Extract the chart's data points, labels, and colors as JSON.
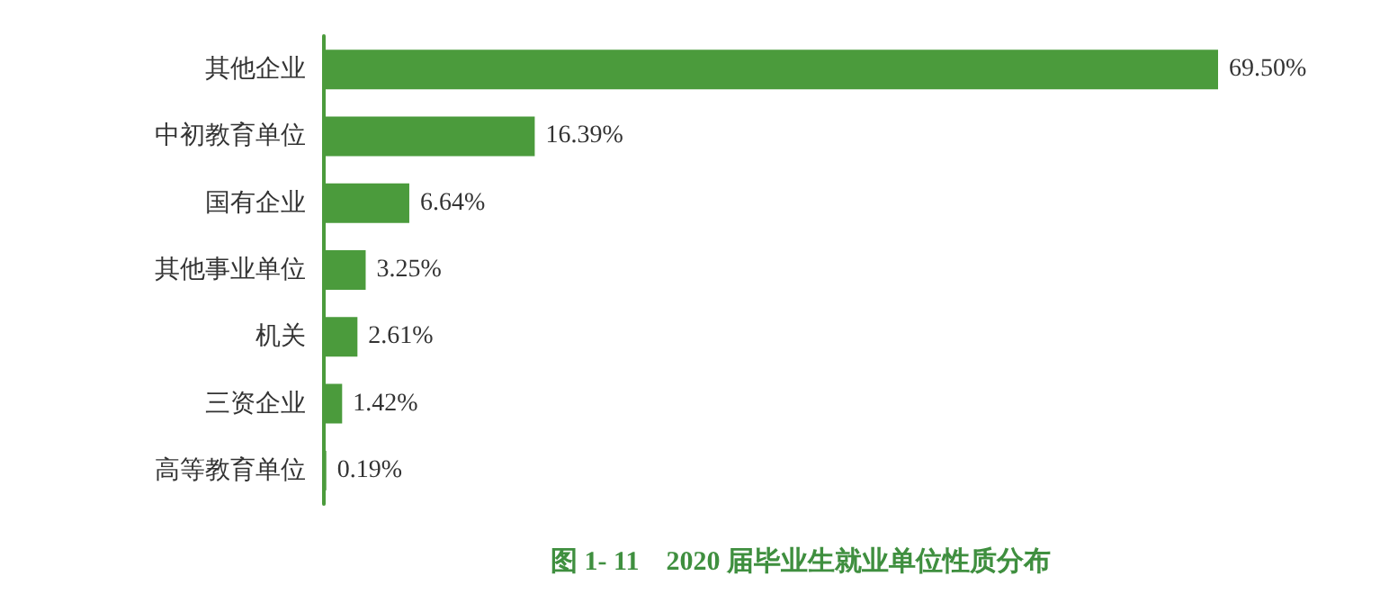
{
  "chart_data": {
    "type": "bar",
    "orientation": "horizontal",
    "title": "图 1- 11　2020 届毕业生就业单位性质分布",
    "categories": [
      "其他企业",
      "中初教育单位",
      "国有企业",
      "其他事业单位",
      "机关",
      "三资企业",
      "高等教育单位"
    ],
    "values": [
      69.5,
      16.39,
      6.64,
      3.25,
      2.61,
      1.42,
      0.19
    ],
    "value_labels": [
      "69.50%",
      "16.39%",
      "6.64%",
      "3.25%",
      "2.61%",
      "1.42%",
      "0.19%"
    ],
    "color": "#4b9b3c"
  }
}
